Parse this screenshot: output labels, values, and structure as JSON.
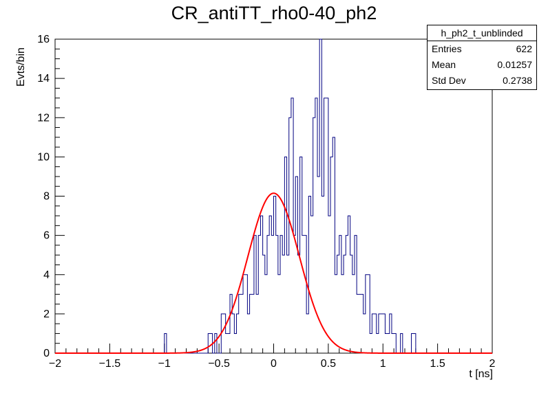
{
  "chart_data": {
    "type": "histogram",
    "title": "CR_antiTT_rho0-40_ph2",
    "xlabel": "t [ns]",
    "ylabel": "Evts/bin",
    "xlim": [
      -2,
      2
    ],
    "ylim": [
      0,
      16
    ],
    "xticks": [
      "−2",
      "−1.5",
      "−1",
      "−0.5",
      "0",
      "0.5",
      "1",
      "1.5",
      "2"
    ],
    "yticks": [
      "0",
      "2",
      "4",
      "6",
      "8",
      "10",
      "12",
      "14",
      "16"
    ],
    "bin_width": 0.02,
    "bins_x_start": -2,
    "counts": [
      0,
      0,
      0,
      0,
      0,
      0,
      0,
      0,
      0,
      0,
      0,
      0,
      0,
      0,
      0,
      0,
      0,
      0,
      0,
      0,
      0,
      0,
      0,
      0,
      0,
      0,
      0,
      0,
      0,
      0,
      0,
      0,
      0,
      0,
      0,
      0,
      0,
      0,
      0,
      0,
      0,
      0,
      0,
      0,
      0,
      0,
      0,
      0,
      0,
      0,
      1,
      0,
      0,
      0,
      0,
      0,
      0,
      0,
      0,
      0,
      0,
      0,
      0,
      0,
      0,
      0,
      0,
      0,
      0,
      0,
      1,
      1,
      0,
      1,
      0,
      0,
      2,
      2,
      1,
      1,
      3,
      2,
      1,
      2,
      3,
      3,
      4,
      4,
      2,
      3,
      3,
      6,
      3,
      6,
      7,
      5,
      4,
      6,
      7,
      6,
      8,
      6,
      4,
      6,
      5,
      10,
      5,
      12,
      13,
      6,
      9,
      5,
      10,
      6,
      6,
      2,
      8,
      7,
      12,
      13,
      9,
      16,
      8,
      13,
      13,
      7,
      10,
      11,
      4,
      5,
      6,
      4,
      5,
      6,
      7,
      5,
      4,
      6,
      3,
      3,
      3,
      2,
      4,
      4,
      1,
      2,
      2,
      1,
      2,
      2,
      2,
      1,
      1,
      2,
      1,
      1,
      0,
      0,
      1,
      0,
      0,
      0,
      0,
      1,
      1,
      0,
      0,
      0,
      0,
      0,
      0,
      0,
      0,
      0,
      0,
      0,
      0,
      0,
      0,
      0,
      0,
      0,
      0,
      0,
      0,
      0,
      0,
      0,
      0,
      0,
      0,
      0,
      0,
      0,
      0,
      0,
      0,
      0,
      0,
      0
    ],
    "fit": {
      "type": "gaussian",
      "amplitude": 8.15,
      "mean": 0.0,
      "sigma": 0.235,
      "color": "#ff0000"
    },
    "line_color": "#000080"
  },
  "stats": {
    "name": "h_ph2_t_unblinded",
    "rows": [
      {
        "label": "Entries",
        "value": "622"
      },
      {
        "label": "Mean",
        "value": "0.01257"
      },
      {
        "label": "Std Dev",
        "value": "0.2738"
      }
    ]
  }
}
